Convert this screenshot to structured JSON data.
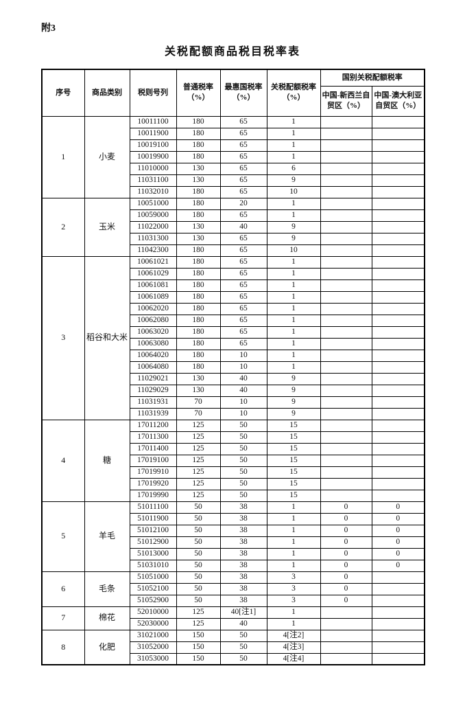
{
  "page": {
    "annex_label": "附3",
    "title": "关税配额商品税目税率表"
  },
  "table": {
    "headers": {
      "no": "序号",
      "category": "商品类别",
      "code": "税则号列",
      "general": "普通税率（%）",
      "mfn": "最惠国税率（%）",
      "quota": "关税配额税率（%）",
      "country_group": "国别关税配额税率",
      "nz": "中国-新西兰自贸区（%）",
      "au": "中国-澳大利亚自贸区（%）"
    },
    "groups": [
      {
        "no": "1",
        "category": "小麦",
        "rows": [
          [
            "10011100",
            "180",
            "65",
            "1",
            "",
            ""
          ],
          [
            "10011900",
            "180",
            "65",
            "1",
            "",
            ""
          ],
          [
            "10019100",
            "180",
            "65",
            "1",
            "",
            ""
          ],
          [
            "10019900",
            "180",
            "65",
            "1",
            "",
            ""
          ],
          [
            "11010000",
            "130",
            "65",
            "6",
            "",
            ""
          ],
          [
            "11031100",
            "130",
            "65",
            "9",
            "",
            ""
          ],
          [
            "11032010",
            "180",
            "65",
            "10",
            "",
            ""
          ]
        ]
      },
      {
        "no": "2",
        "category": "玉米",
        "rows": [
          [
            "10051000",
            "180",
            "20",
            "1",
            "",
            ""
          ],
          [
            "10059000",
            "180",
            "65",
            "1",
            "",
            ""
          ],
          [
            "11022000",
            "130",
            "40",
            "9",
            "",
            ""
          ],
          [
            "11031300",
            "130",
            "65",
            "9",
            "",
            ""
          ],
          [
            "11042300",
            "180",
            "65",
            "10",
            "",
            ""
          ]
        ]
      },
      {
        "no": "3",
        "category": "稻谷和大米",
        "rows": [
          [
            "10061021",
            "180",
            "65",
            "1",
            "",
            ""
          ],
          [
            "10061029",
            "180",
            "65",
            "1",
            "",
            ""
          ],
          [
            "10061081",
            "180",
            "65",
            "1",
            "",
            ""
          ],
          [
            "10061089",
            "180",
            "65",
            "1",
            "",
            ""
          ],
          [
            "10062020",
            "180",
            "65",
            "1",
            "",
            ""
          ],
          [
            "10062080",
            "180",
            "65",
            "1",
            "",
            ""
          ],
          [
            "10063020",
            "180",
            "65",
            "1",
            "",
            ""
          ],
          [
            "10063080",
            "180",
            "65",
            "1",
            "",
            ""
          ],
          [
            "10064020",
            "180",
            "10",
            "1",
            "",
            ""
          ],
          [
            "10064080",
            "180",
            "10",
            "1",
            "",
            ""
          ],
          [
            "11029021",
            "130",
            "40",
            "9",
            "",
            ""
          ],
          [
            "11029029",
            "130",
            "40",
            "9",
            "",
            ""
          ],
          [
            "11031931",
            "70",
            "10",
            "9",
            "",
            ""
          ],
          [
            "11031939",
            "70",
            "10",
            "9",
            "",
            ""
          ]
        ]
      },
      {
        "no": "4",
        "category": "糖",
        "rows": [
          [
            "17011200",
            "125",
            "50",
            "15",
            "",
            ""
          ],
          [
            "17011300",
            "125",
            "50",
            "15",
            "",
            ""
          ],
          [
            "17011400",
            "125",
            "50",
            "15",
            "",
            ""
          ],
          [
            "17019100",
            "125",
            "50",
            "15",
            "",
            ""
          ],
          [
            "17019910",
            "125",
            "50",
            "15",
            "",
            ""
          ],
          [
            "17019920",
            "125",
            "50",
            "15",
            "",
            ""
          ],
          [
            "17019990",
            "125",
            "50",
            "15",
            "",
            ""
          ]
        ]
      },
      {
        "no": "5",
        "category": "羊毛",
        "rows": [
          [
            "51011100",
            "50",
            "38",
            "1",
            "0",
            "0"
          ],
          [
            "51011900",
            "50",
            "38",
            "1",
            "0",
            "0"
          ],
          [
            "51012100",
            "50",
            "38",
            "1",
            "0",
            "0"
          ],
          [
            "51012900",
            "50",
            "38",
            "1",
            "0",
            "0"
          ],
          [
            "51013000",
            "50",
            "38",
            "1",
            "0",
            "0"
          ],
          [
            "51031010",
            "50",
            "38",
            "1",
            "0",
            "0"
          ]
        ]
      },
      {
        "no": "6",
        "category": "毛条",
        "rows": [
          [
            "51051000",
            "50",
            "38",
            "3",
            "0",
            ""
          ],
          [
            "51052100",
            "50",
            "38",
            "3",
            "0",
            ""
          ],
          [
            "51052900",
            "50",
            "38",
            "3",
            "0",
            ""
          ]
        ]
      },
      {
        "no": "7",
        "category": "棉花",
        "rows": [
          [
            "52010000",
            "125",
            "40[注1]",
            "1",
            "",
            ""
          ],
          [
            "52030000",
            "125",
            "40",
            "1",
            "",
            ""
          ]
        ]
      },
      {
        "no": "8",
        "category": "化肥",
        "rows": [
          [
            "31021000",
            "150",
            "50",
            "4[注2]",
            "",
            ""
          ],
          [
            "31052000",
            "150",
            "50",
            "4[注3]",
            "",
            ""
          ],
          [
            "31053000",
            "150",
            "50",
            "4[注4]",
            "",
            ""
          ]
        ]
      }
    ]
  }
}
